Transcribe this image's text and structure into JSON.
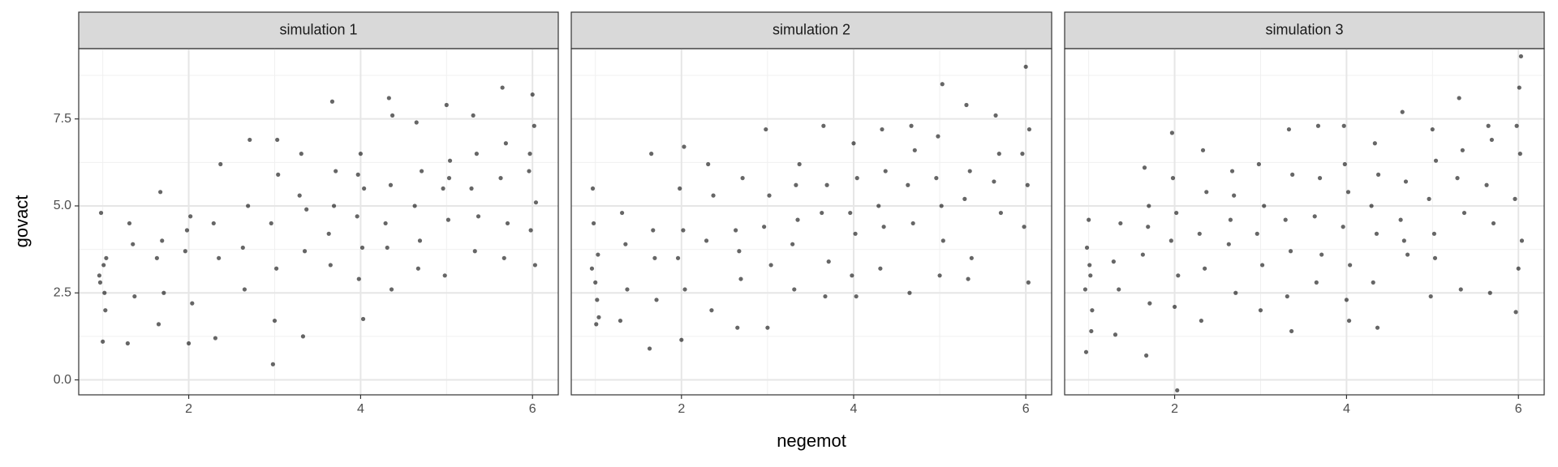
{
  "xlabel": "negemot",
  "ylabel": "govact",
  "chart_data": [
    {
      "type": "scatter",
      "title": "simulation 1",
      "color": "#000000",
      "grid": true,
      "xlim": [
        0.72,
        6.3
      ],
      "ylim": [
        -0.43,
        9.52
      ],
      "xticks": [
        2,
        4,
        6
      ],
      "xminorticks": [
        1,
        3,
        5
      ],
      "yticks": [
        {
          "value": 0,
          "label": "0.0"
        },
        2.5,
        {
          "value": 5,
          "label": "5.0"
        },
        7.5
      ],
      "yminorticks": [
        1.25,
        3.75,
        6.25,
        8.75
      ],
      "x": [
        0.96,
        1.02,
        1.04,
        0.98,
        1,
        1.03,
        0.97,
        1.01,
        1.29,
        1.35,
        1.37,
        1.31,
        1.63,
        1.69,
        1.71,
        1.65,
        1.67,
        1.96,
        2.02,
        2.04,
        1.98,
        2,
        2.29,
        2.35,
        2.37,
        2.31,
        2.63,
        2.69,
        2.71,
        2.65,
        2.96,
        3.02,
        3.04,
        2.98,
        3,
        3.03,
        3.29,
        3.35,
        3.37,
        3.31,
        3.33,
        3.63,
        3.69,
        3.71,
        3.65,
        3.67,
        3.96,
        4.02,
        4.04,
        3.98,
        4,
        4.03,
        3.97,
        4.29,
        4.35,
        4.37,
        4.31,
        4.33,
        4.36,
        4.63,
        4.69,
        4.71,
        4.65,
        4.67,
        4.96,
        5.02,
        5.04,
        4.98,
        5,
        5.03,
        5.29,
        5.35,
        5.37,
        5.31,
        5.33,
        5.63,
        5.69,
        5.71,
        5.65,
        5.67,
        5.96,
        6.02,
        6.04,
        5.98,
        6,
        6.03,
        5.97
      ],
      "y": [
        3.0,
        2.5,
        3.5,
        4.8,
        1.1,
        2.0,
        2.8,
        3.3,
        1.05,
        3.9,
        2.4,
        4.5,
        3.5,
        4.0,
        2.5,
        1.6,
        5.4,
        3.7,
        4.7,
        2.2,
        4.3,
        1.05,
        4.5,
        3.5,
        6.2,
        1.2,
        3.8,
        5.0,
        6.9,
        2.6,
        4.5,
        3.2,
        5.9,
        0.45,
        1.7,
        6.9,
        5.3,
        3.7,
        4.9,
        6.5,
        1.25,
        4.2,
        5.0,
        6.0,
        3.3,
        8.0,
        4.7,
        3.8,
        5.5,
        2.9,
        6.5,
        1.75,
        5.9,
        4.5,
        5.6,
        7.6,
        3.8,
        8.1,
        2.6,
        5.0,
        4.0,
        6.0,
        7.4,
        3.2,
        5.5,
        4.6,
        6.3,
        3.0,
        7.9,
        5.8,
        5.5,
        6.5,
        4.7,
        7.6,
        3.7,
        5.8,
        6.8,
        4.5,
        8.4,
        3.5,
        6.0,
        7.3,
        5.1,
        4.3,
        8.2,
        3.3,
        6.5
      ]
    },
    {
      "type": "scatter",
      "title": "simulation 2",
      "color": "#000000",
      "grid": true,
      "xlim": [
        0.72,
        6.3
      ],
      "ylim": [
        -0.43,
        9.52
      ],
      "xticks": [
        2,
        4,
        6
      ],
      "xminorticks": [
        1,
        3,
        5
      ],
      "yticks": [
        {
          "value": 0,
          "label": "0.0"
        },
        2.5,
        {
          "value": 5,
          "label": "5.0"
        },
        7.5
      ],
      "yminorticks": [
        1.25,
        3.75,
        6.25,
        8.75
      ],
      "x": [
        0.96,
        1.02,
        1.04,
        0.98,
        1,
        1.03,
        0.97,
        1.01,
        1.29,
        1.35,
        1.37,
        1.31,
        1.63,
        1.69,
        1.71,
        1.65,
        1.67,
        1.96,
        2.02,
        2.04,
        1.98,
        2,
        2.03,
        2.29,
        2.35,
        2.37,
        2.31,
        2.63,
        2.69,
        2.71,
        2.65,
        2.67,
        2.96,
        3.02,
        3.04,
        2.98,
        3,
        3.29,
        3.35,
        3.37,
        3.31,
        3.33,
        3.63,
        3.69,
        3.71,
        3.65,
        3.67,
        3.96,
        4.02,
        4.04,
        3.98,
        4,
        4.03,
        4.29,
        4.35,
        4.37,
        4.31,
        4.33,
        4.63,
        4.69,
        4.71,
        4.65,
        4.67,
        4.96,
        5.02,
        5.04,
        4.98,
        5,
        5.03,
        5.29,
        5.35,
        5.37,
        5.31,
        5.33,
        5.63,
        5.69,
        5.71,
        5.65,
        5.96,
        6.02,
        6.04,
        5.98,
        6,
        6.03
      ],
      "y": [
        3.2,
        2.3,
        1.8,
        4.5,
        2.8,
        3.6,
        5.5,
        1.6,
        1.7,
        3.9,
        2.6,
        4.8,
        0.9,
        3.5,
        2.3,
        6.5,
        4.3,
        3.5,
        4.3,
        2.6,
        5.5,
        1.15,
        6.7,
        4.0,
        2.0,
        5.3,
        6.2,
        4.3,
        2.9,
        5.8,
        1.5,
        3.7,
        4.4,
        5.3,
        3.3,
        7.2,
        1.5,
        3.9,
        4.6,
        6.2,
        2.6,
        5.6,
        4.8,
        5.6,
        3.4,
        7.3,
        2.4,
        4.8,
        4.2,
        5.8,
        3.0,
        6.8,
        2.4,
        5.0,
        4.4,
        6.0,
        3.2,
        7.2,
        5.6,
        4.5,
        6.6,
        2.5,
        7.3,
        5.8,
        5.0,
        4.0,
        7.0,
        3.0,
        8.5,
        5.2,
        6.0,
        3.5,
        7.9,
        2.9,
        5.7,
        6.5,
        4.8,
        7.6,
        6.5,
        5.6,
        7.2,
        4.4,
        9.0,
        2.8
      ]
    },
    {
      "type": "scatter",
      "title": "simulation 3",
      "color": "#000000",
      "grid": true,
      "xlim": [
        0.72,
        6.3
      ],
      "ylim": [
        -0.43,
        9.52
      ],
      "xticks": [
        2,
        4,
        6
      ],
      "xminorticks": [
        1,
        3,
        5
      ],
      "yticks": [
        {
          "value": 0,
          "label": "0.0"
        },
        2.5,
        {
          "value": 5,
          "label": "5.0"
        },
        7.5
      ],
      "yminorticks": [
        1.25,
        3.75,
        6.25,
        8.75
      ],
      "x": [
        0.96,
        1.02,
        1.04,
        0.98,
        1,
        1.03,
        0.97,
        1.01,
        1.29,
        1.35,
        1.37,
        1.31,
        1.63,
        1.69,
        1.71,
        1.65,
        1.67,
        1.7,
        1.96,
        2.02,
        2.04,
        1.98,
        2,
        2.03,
        1.97,
        2.29,
        2.35,
        2.37,
        2.31,
        2.33,
        2.63,
        2.69,
        2.71,
        2.65,
        2.67,
        2.96,
        3.02,
        3.04,
        2.98,
        3,
        3.29,
        3.35,
        3.37,
        3.31,
        3.33,
        3.36,
        3.63,
        3.69,
        3.71,
        3.65,
        3.67,
        3.96,
        4.02,
        4.04,
        3.98,
        4,
        4.03,
        3.97,
        4.29,
        4.35,
        4.37,
        4.31,
        4.33,
        4.36,
        4.63,
        4.69,
        4.71,
        4.65,
        4.67,
        4.96,
        5.02,
        5.04,
        4.98,
        5,
        5.03,
        5.29,
        5.35,
        5.37,
        5.31,
        5.33,
        5.63,
        5.69,
        5.71,
        5.65,
        5.67,
        5.96,
        6.02,
        6.04,
        5.98,
        6,
        6.03,
        5.97,
        6.01
      ],
      "y": [
        2.6,
        3.0,
        2.0,
        3.8,
        4.6,
        1.4,
        0.8,
        3.3,
        3.4,
        2.6,
        4.5,
        1.3,
        3.6,
        4.4,
        2.2,
        6.1,
        0.7,
        5.0,
        4.0,
        4.8,
        3.0,
        5.8,
        2.1,
        -0.3,
        7.1,
        4.2,
        3.2,
        5.4,
        1.7,
        6.6,
        3.9,
        5.3,
        2.5,
        4.6,
        6.0,
        4.2,
        3.3,
        5.0,
        6.2,
        2.0,
        4.6,
        3.7,
        5.9,
        2.4,
        7.2,
        1.4,
        4.7,
        5.8,
        3.6,
        2.8,
        7.3,
        4.4,
        5.4,
        3.3,
        6.2,
        2.3,
        1.7,
        7.3,
        5.0,
        4.2,
        5.9,
        2.8,
        6.8,
        1.5,
        4.6,
        5.7,
        3.6,
        7.7,
        4.0,
        5.2,
        4.2,
        6.3,
        2.4,
        7.2,
        3.5,
        5.8,
        6.6,
        4.8,
        8.1,
        2.6,
        5.6,
        6.9,
        4.5,
        7.3,
        2.5,
        5.2,
        6.5,
        4.0,
        7.3,
        3.2,
        9.3,
        1.95,
        8.4
      ]
    }
  ]
}
